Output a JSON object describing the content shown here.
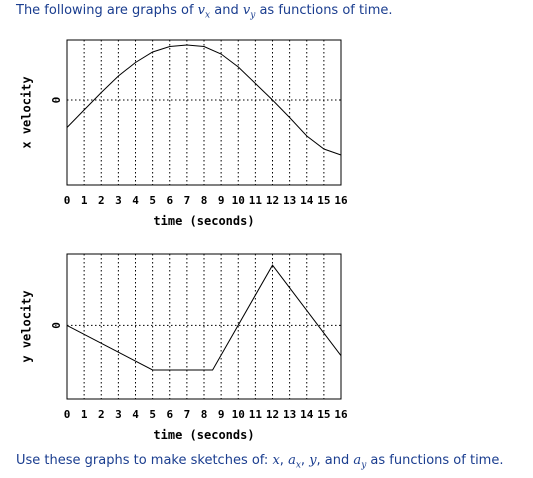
{
  "intro": {
    "prefix": "The following are graphs of",
    "var1": "v",
    "var1_sub": "x",
    "and": "and",
    "var2": "v",
    "var2_sub": "y",
    "suffix": "as functions of time."
  },
  "outro": {
    "prefix": "Use these graphs to make sketches of:",
    "v1": "x",
    "sep1": ",",
    "v2": "a",
    "v2_sub": "x",
    "sep2": ",",
    "v3": "y",
    "sep3": ", and",
    "v4": "a",
    "v4_sub": "y",
    "suffix": "as functions of time."
  },
  "chart_data": [
    {
      "type": "line",
      "ylabel": "x velocity",
      "xlabel": "time (seconds)",
      "x_ticks": [
        "0",
        "1",
        "2",
        "3",
        "4",
        "5",
        "6",
        "7",
        "8",
        "9",
        "10",
        "11",
        "12",
        "13",
        "14",
        "15",
        "16"
      ],
      "y_tick": "0",
      "xlim": [
        0,
        16
      ],
      "ylim": [
        -1.7,
        1.2
      ],
      "grid": true,
      "series": [
        {
          "x": [
            0,
            1,
            2,
            3,
            4,
            5,
            6,
            7,
            8,
            9,
            10,
            11,
            12,
            13,
            14,
            15,
            16
          ],
          "y": [
            -0.55,
            -0.2,
            0.15,
            0.48,
            0.75,
            0.96,
            1.07,
            1.1,
            1.07,
            0.92,
            0.66,
            0.33,
            0.0,
            -0.35,
            -0.72,
            -0.98,
            -1.1
          ]
        }
      ]
    },
    {
      "type": "line",
      "ylabel": "y velocity",
      "xlabel": "time (seconds)",
      "x_ticks": [
        "0",
        "1",
        "2",
        "3",
        "4",
        "5",
        "6",
        "7",
        "8",
        "9",
        "10",
        "11",
        "12",
        "13",
        "14",
        "15",
        "16"
      ],
      "y_tick": "0",
      "xlim": [
        0,
        16
      ],
      "ylim": [
        -1.65,
        1.6
      ],
      "grid": true,
      "series": [
        {
          "x": [
            0,
            5,
            8.5,
            12,
            16
          ],
          "y": [
            0,
            -1,
            -1,
            1.35,
            -0.68
          ]
        }
      ]
    }
  ]
}
